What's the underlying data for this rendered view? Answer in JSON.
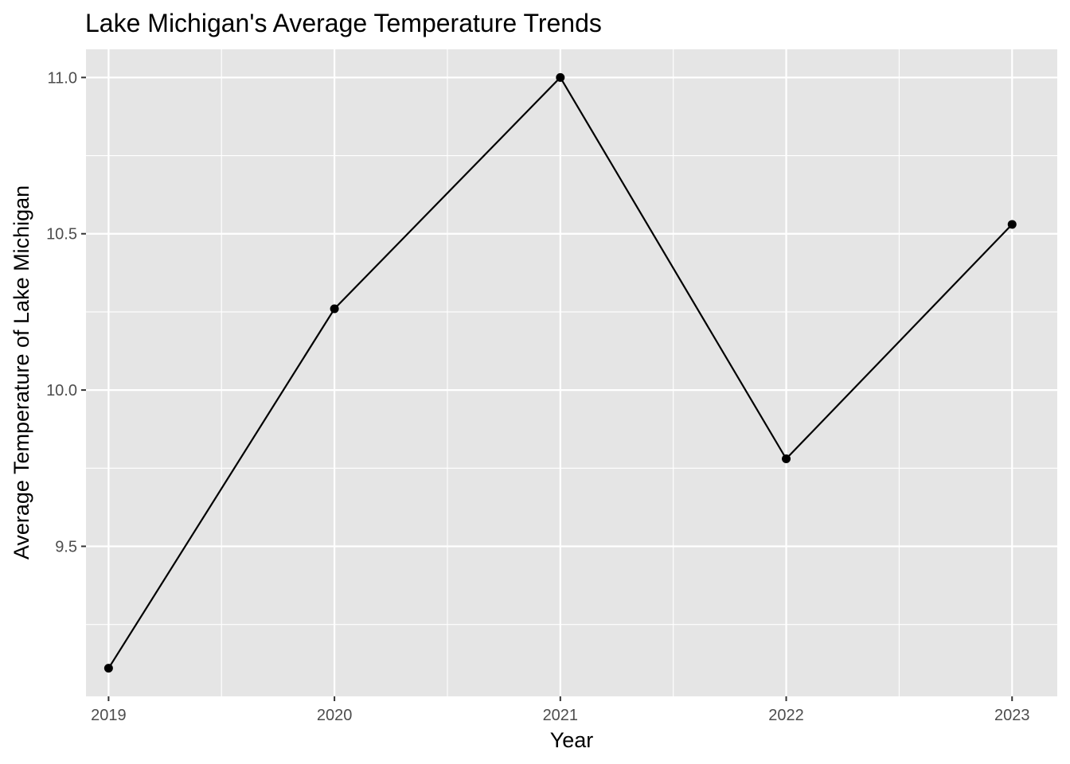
{
  "chart_data": {
    "type": "line",
    "title": "Lake Michigan's Average Temperature Trends",
    "xlabel": "Year",
    "ylabel": "Average Temperature of Lake Michigan",
    "x": [
      2019,
      2020,
      2021,
      2022,
      2023
    ],
    "x_tick_labels": [
      "2019",
      "2020",
      "2021",
      "2022",
      "2023"
    ],
    "y": [
      9.11,
      10.26,
      11.0,
      9.78,
      10.53
    ],
    "y_ticks": [
      9.5,
      10.0,
      10.5,
      11.0
    ],
    "y_tick_labels": [
      "9.5",
      "10.0",
      "10.5",
      "11.0"
    ],
    "xlim": [
      2018.9,
      2023.2
    ],
    "ylim": [
      9.02,
      11.09
    ],
    "grid": true,
    "legend": "none",
    "colors": {
      "panel_background": "#e5e5e5",
      "grid": "#ffffff",
      "line": "#000000",
      "point": "#000000",
      "tick_text": "#4d4d4d"
    }
  }
}
